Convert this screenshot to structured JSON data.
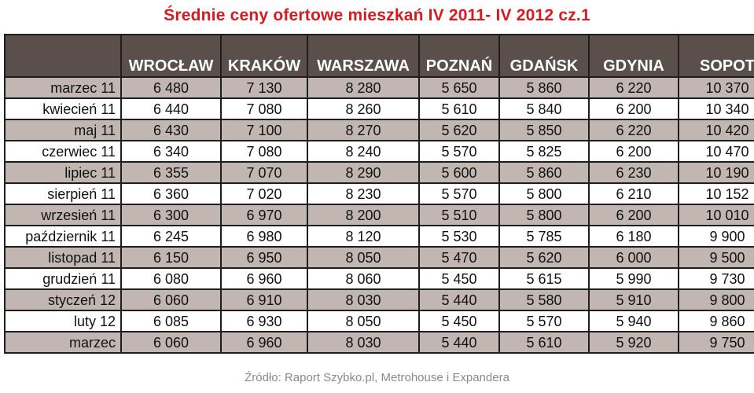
{
  "chart_data": {
    "type": "table",
    "title": "Średnie ceny ofertowe mieszkań IV 2011- IV 2012 cz.1",
    "columns": [
      "",
      "WROCŁAW",
      "KRAKÓW",
      "WARSZAWA",
      "POZNAŃ",
      "GDAŃSK",
      "GDYNIA",
      "SOPOT"
    ],
    "rows": [
      {
        "label": "marzec 11",
        "values": [
          "6 480",
          "7 130",
          "8 280",
          "5 650",
          "5 860",
          "6 220",
          "10 370"
        ]
      },
      {
        "label": "kwiecień 11",
        "values": [
          "6 440",
          "7 080",
          "8 260",
          "5 610",
          "5 840",
          "6 200",
          "10 340"
        ]
      },
      {
        "label": "maj 11",
        "values": [
          "6 430",
          "7 100",
          "8 270",
          "5 620",
          "5 850",
          "6 220",
          "10 420"
        ]
      },
      {
        "label": "czerwiec 11",
        "values": [
          "6 340",
          "7 080",
          "8 240",
          "5 570",
          "5 825",
          "6 200",
          "10 470"
        ]
      },
      {
        "label": "lipiec 11",
        "values": [
          "6 355",
          "7 070",
          "8 290",
          "5 600",
          "5 860",
          "6 230",
          "10 190"
        ]
      },
      {
        "label": "sierpień 11",
        "values": [
          "6 360",
          "7 020",
          "8 230",
          "5 570",
          "5 800",
          "6 210",
          "10 152"
        ]
      },
      {
        "label": "wrzesień 11",
        "values": [
          "6 300",
          "6 970",
          "8 200",
          "5 510",
          "5 800",
          "6 200",
          "10 010"
        ]
      },
      {
        "label": "październik 11",
        "values": [
          "6 245",
          "6 980",
          "8 120",
          "5 530",
          "5 785",
          "6 180",
          "9 900"
        ]
      },
      {
        "label": "listopad 11",
        "values": [
          "6 150",
          "6 950",
          "8 050",
          "5 470",
          "5 620",
          "6 000",
          "9 500"
        ]
      },
      {
        "label": "grudzień 11",
        "values": [
          "6 080",
          "6 960",
          "8 060",
          "5 450",
          "5 615",
          "5 990",
          "9 730"
        ]
      },
      {
        "label": "styczeń 12",
        "values": [
          "6 060",
          "6 910",
          "8 030",
          "5 440",
          "5 580",
          "5 910",
          "9 800"
        ]
      },
      {
        "label": "luty 12",
        "values": [
          "6 085",
          "6 930",
          "8 050",
          "5 450",
          "5 570",
          "5 940",
          "9 860"
        ]
      },
      {
        "label": "marzec",
        "values": [
          "6 060",
          "6 960",
          "8 030",
          "5 440",
          "5 610",
          "5 920",
          "9 750"
        ]
      }
    ],
    "source": "Źródło: Raport Szybko.pl, Metrohouse i Expandera"
  },
  "colors": {
    "title": "#d71a20",
    "header_bg": "#5a4f4a",
    "header_text": "#ffffff",
    "row_shade": "#c1b6b2",
    "row_plain": "#ffffff",
    "border": "#1e1e1e",
    "source_text": "#8a8a8a"
  }
}
